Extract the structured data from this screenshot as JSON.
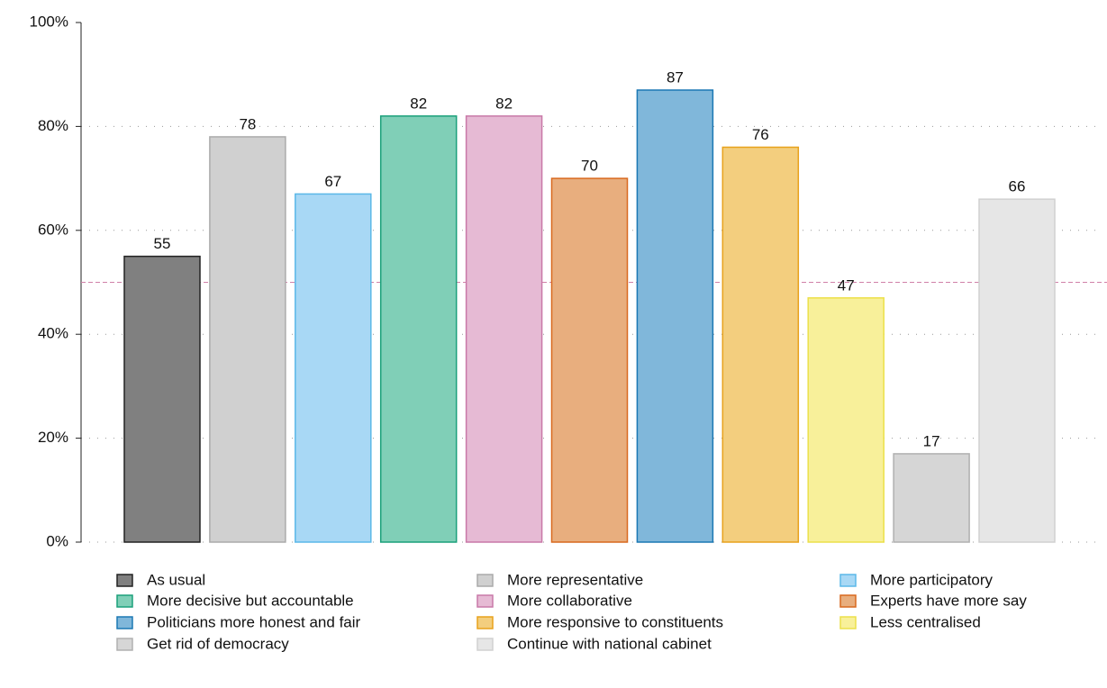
{
  "chart_data": {
    "type": "bar",
    "categories": [
      "As usual",
      "More representative",
      "More participatory",
      "More decisive but accountable",
      "More collaborative",
      "Experts have more say",
      "Politicians more honest and fair",
      "More responsive to constituents",
      "Less centralised",
      "Get rid of democracy",
      "Continue with national cabinet"
    ],
    "values": [
      55,
      78,
      67,
      82,
      82,
      70,
      87,
      76,
      47,
      17,
      66
    ],
    "colors": [
      "#808080",
      "#d0d0d0",
      "#a8d8f5",
      "#80cfb7",
      "#e6bad4",
      "#e8ae7e",
      "#80b7da",
      "#f3ce7e",
      "#f8f09a",
      "#d6d6d6",
      "#e6e6e6"
    ],
    "edgecolors": [
      "#222222",
      "#aaaaaa",
      "#5bb8e8",
      "#1aa07a",
      "#c979a8",
      "#d9691e",
      "#1b78b4",
      "#e8a21c",
      "#ece04a",
      "#b0b0b0",
      "#d0d0d0"
    ],
    "ylim": [
      0,
      100
    ],
    "yticks": [
      {
        "value": 0,
        "label": "0%"
      },
      {
        "value": 20,
        "label": "20%"
      },
      {
        "value": 40,
        "label": "40%"
      },
      {
        "value": 60,
        "label": "60%"
      },
      {
        "value": 80,
        "label": "80%"
      },
      {
        "value": 100,
        "label": "100%"
      }
    ],
    "grid": true,
    "reference_line": 50,
    "reference_color": "#d080a8"
  }
}
